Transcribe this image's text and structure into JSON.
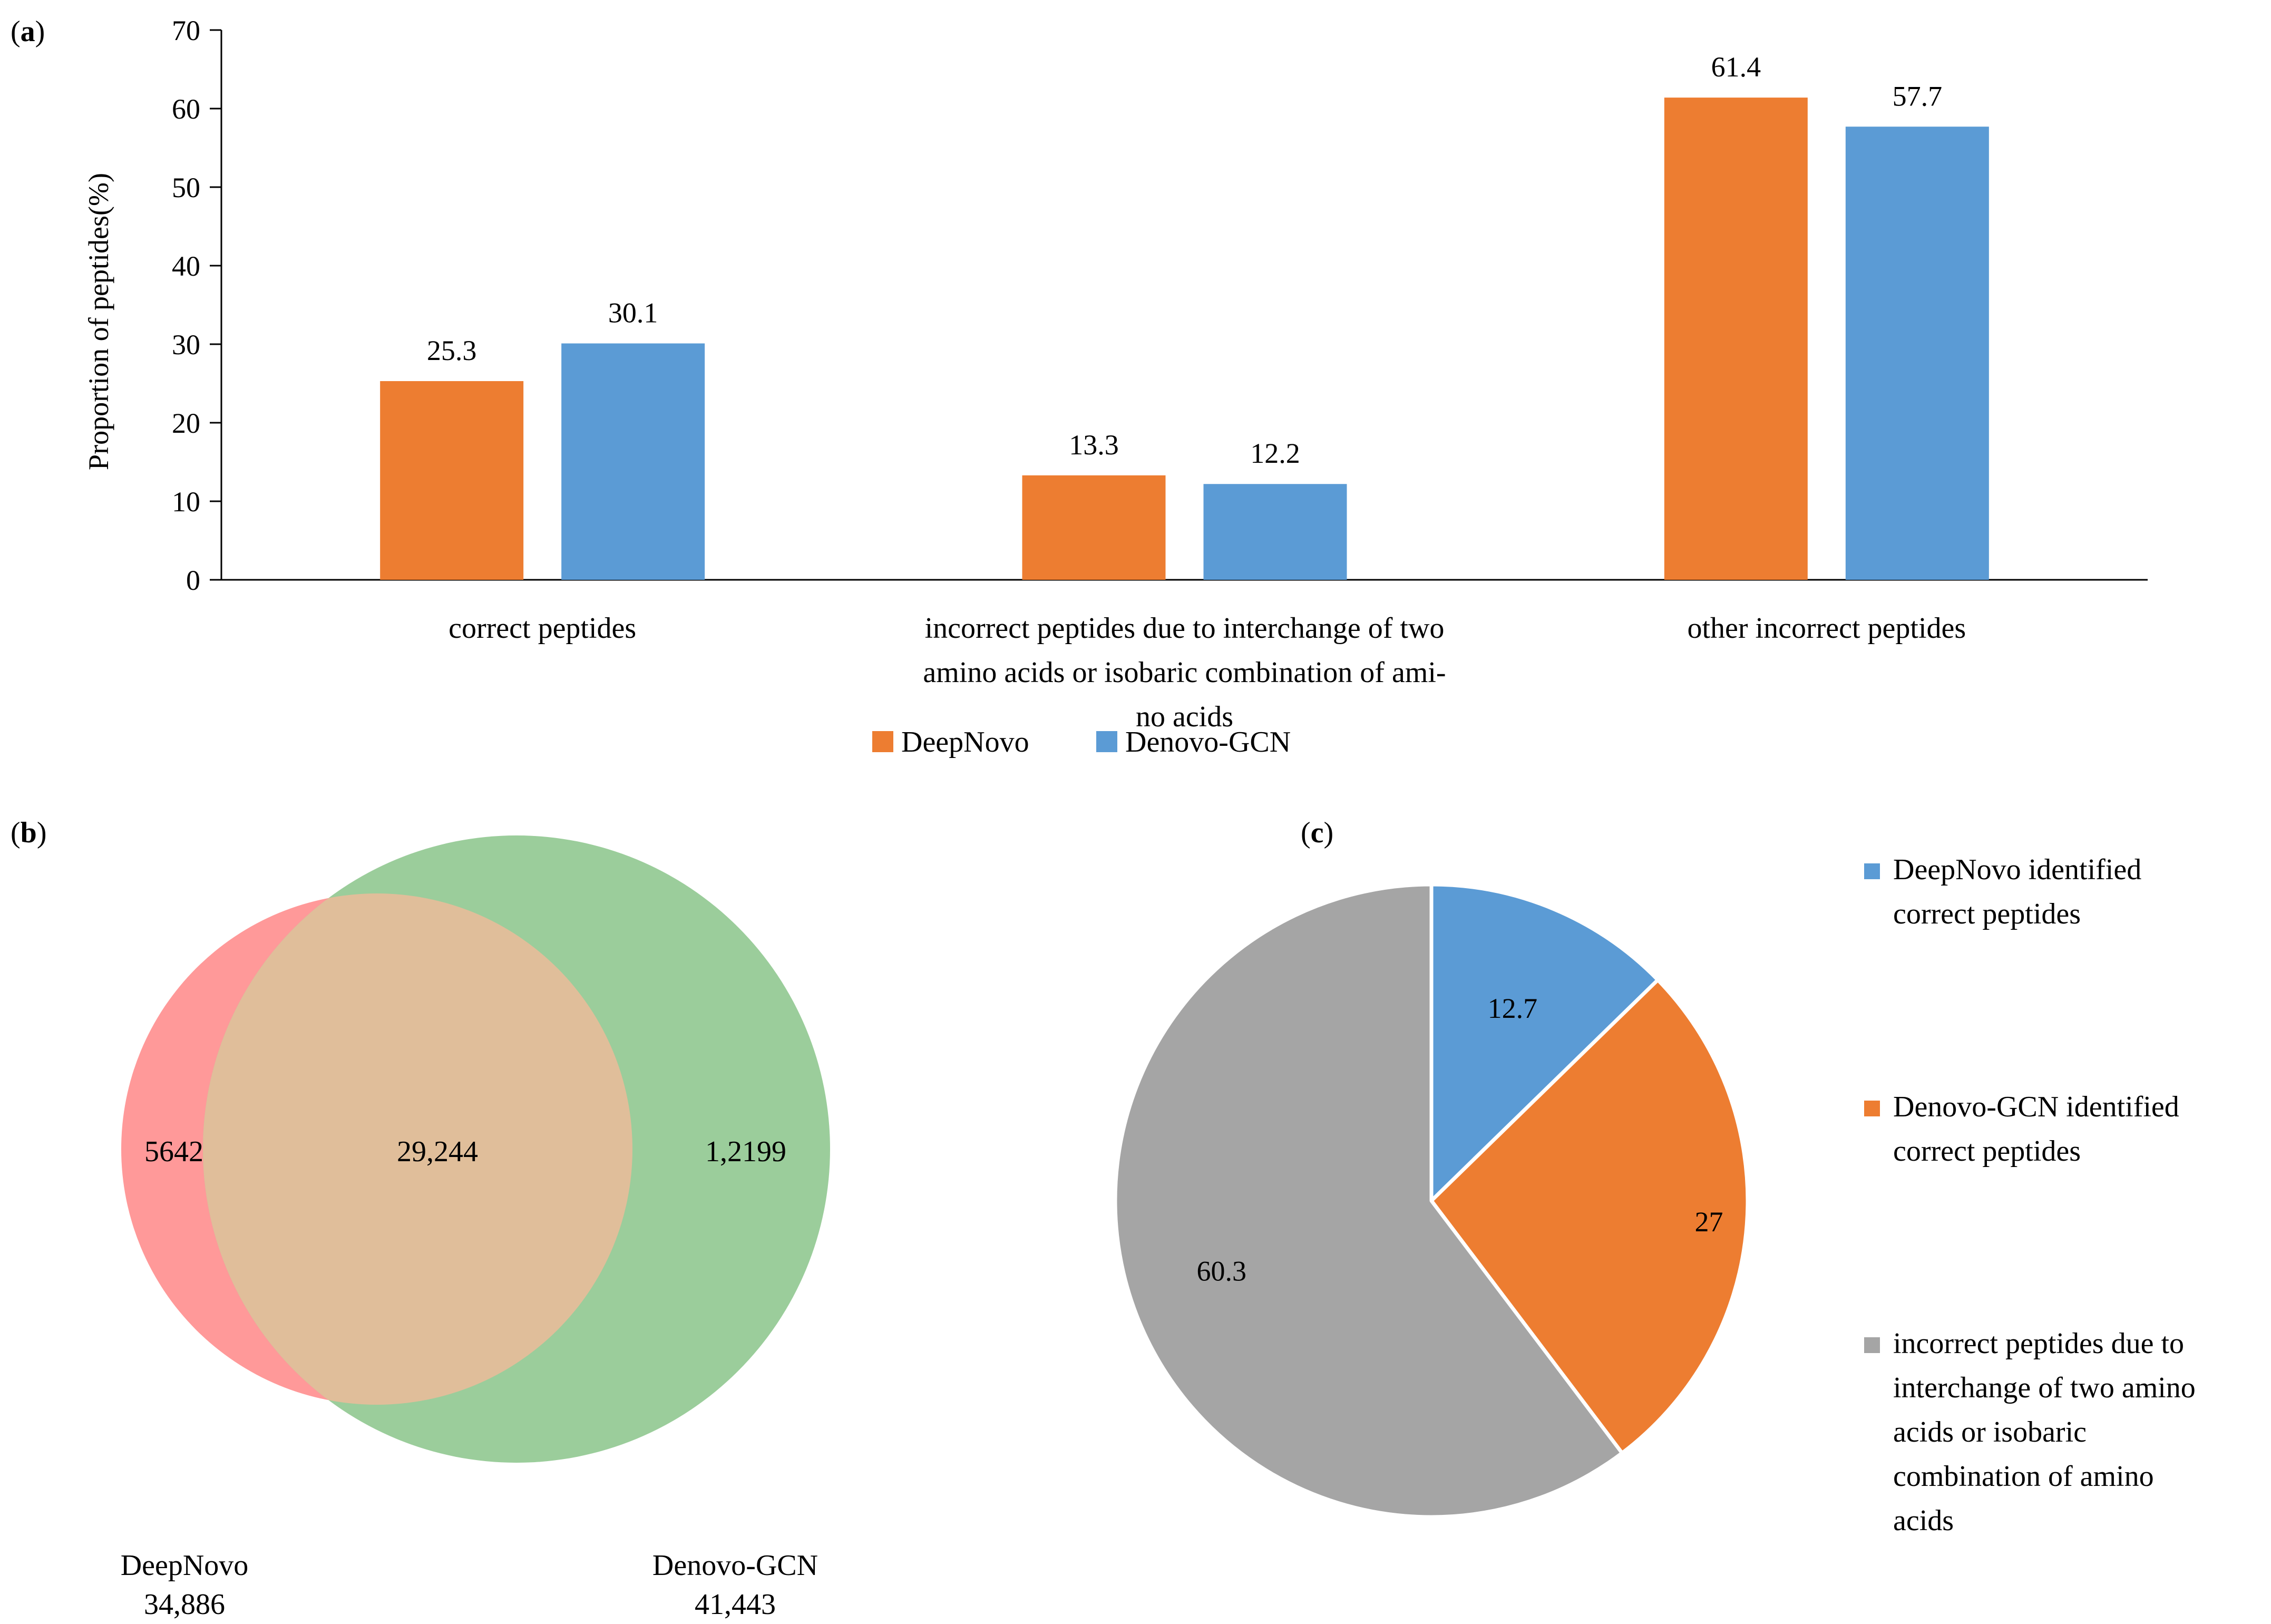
{
  "panels": {
    "a": {
      "label_open": "(",
      "label_letter": "a",
      "label_close": ")"
    },
    "b": {
      "label_open": "(",
      "label_letter": "b",
      "label_close": ")"
    },
    "c": {
      "label_open": "(",
      "label_letter": "c",
      "label_close": ")"
    }
  },
  "colors": {
    "orange": "#ED7D31",
    "blue": "#5B9BD5",
    "gray": "#A5A5A5",
    "venn_left": "#FF9999",
    "venn_right": "#9BCD9B",
    "venn_overlap": "#E0BE9A"
  },
  "chart_data": [
    {
      "type": "bar",
      "panel": "a",
      "title": "",
      "ylabel": "Proportion of peptides(%)",
      "xlabel": "",
      "ylim": [
        0,
        70
      ],
      "yticks": [
        0,
        10,
        20,
        30,
        40,
        50,
        60,
        70
      ],
      "grid": false,
      "legend_position": "bottom",
      "categories": [
        "correct peptides",
        "incorrect peptides due to interchange of two amino acids or isobaric combination of amino acids",
        "other incorrect peptides"
      ],
      "category_lines": [
        [
          "correct peptides"
        ],
        [
          "incorrect peptides due to interchange of two",
          "amino acids or isobaric combination of ami-",
          "no acids"
        ],
        [
          "other incorrect peptides"
        ]
      ],
      "series": [
        {
          "name": "DeepNovo",
          "color": "#ED7D31",
          "values": [
            25.3,
            13.3,
            61.4
          ],
          "labels": [
            "25.3",
            "13.3",
            "61.4"
          ]
        },
        {
          "name": "Denovo-GCN",
          "color": "#5B9BD5",
          "values": [
            30.1,
            12.2,
            57.7
          ],
          "labels": [
            "30.1",
            "12.2",
            "57.7"
          ]
        }
      ]
    },
    {
      "type": "venn",
      "panel": "b",
      "sets": [
        {
          "name": "DeepNovo",
          "total": "34,886",
          "only": "5642",
          "color": "#FF9999"
        },
        {
          "name": "Denovo-GCN",
          "total": "41,443",
          "only": "1,2199",
          "color": "#9BCD9B"
        }
      ],
      "overlap": "29,244"
    },
    {
      "type": "pie",
      "panel": "c",
      "legend_position": "right",
      "slices": [
        {
          "label": "DeepNovo identified correct peptides",
          "legend_lines": [
            "DeepNovo identified",
            "correct peptides"
          ],
          "value": 12.7,
          "text": "12.7",
          "color": "#5B9BD5"
        },
        {
          "label": "Denovo-GCN identified correct peptides",
          "legend_lines": [
            "Denovo-GCN identified",
            "correct peptides"
          ],
          "value": 27,
          "text": "27",
          "color": "#ED7D31"
        },
        {
          "label": "incorrect peptides due to interchange of two amino acids or isobaric combination of amino acids",
          "legend_lines": [
            "incorrect peptides due to",
            "interchange of two amino",
            "acids or isobaric",
            "combination of amino",
            "acids"
          ],
          "value": 60.3,
          "text": "60.3",
          "color": "#A5A5A5"
        }
      ]
    }
  ]
}
